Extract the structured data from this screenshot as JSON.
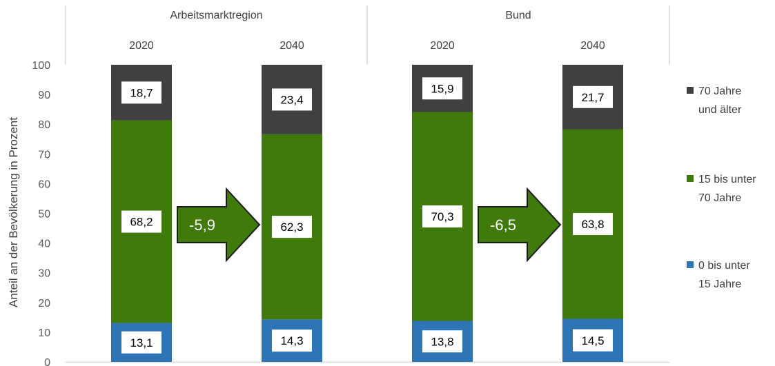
{
  "chart_data": {
    "type": "bar",
    "stacked": true,
    "ylabel": "Anteil an der Bevölkerung in Prozent",
    "ylim": [
      0,
      100
    ],
    "yticks": [
      0,
      10,
      20,
      30,
      40,
      50,
      60,
      70,
      80,
      90,
      100
    ],
    "groups": [
      {
        "label": "Arbeitsmarktregion",
        "years": [
          "2020",
          "2040"
        ],
        "change": "-5,9"
      },
      {
        "label": "Bund",
        "years": [
          "2020",
          "2040"
        ],
        "change": "-6,5"
      }
    ],
    "series": [
      {
        "name": "0 bis unter 15 Jahre",
        "legend_lines": [
          "0 bis unter",
          "15 Jahre"
        ],
        "color": "#2e75b6",
        "values": [
          13.1,
          14.3,
          13.8,
          14.5
        ],
        "labels": [
          "13,1",
          "14,3",
          "13,8",
          "14,5"
        ]
      },
      {
        "name": "15 bis unter 70 Jahre",
        "legend_lines": [
          "15 bis unter",
          "70 Jahre"
        ],
        "color": "#3f7a0a",
        "values": [
          68.2,
          62.3,
          70.3,
          63.8
        ],
        "labels": [
          "68,2",
          "62,3",
          "70,3",
          "63,8"
        ]
      },
      {
        "name": "70 Jahre und älter",
        "legend_lines": [
          "70 Jahre",
          "und älter"
        ],
        "color": "#404040",
        "values": [
          18.7,
          23.4,
          15.9,
          21.7
        ],
        "labels": [
          "18,7",
          "23,4",
          "15,9",
          "21,7"
        ]
      }
    ],
    "legend": "right",
    "grid": false
  }
}
